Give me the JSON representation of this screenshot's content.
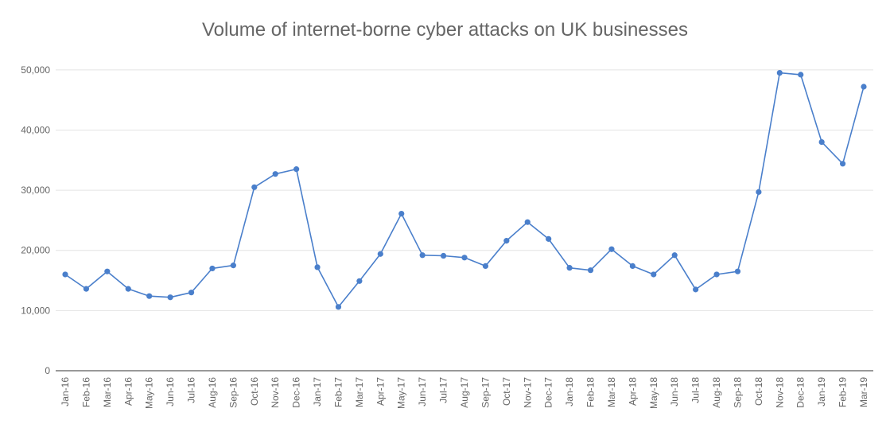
{
  "chart_data": {
    "type": "line",
    "title": "Volume of internet-borne cyber attacks on UK businesses",
    "xlabel": "",
    "ylabel": "",
    "ylim": [
      0,
      55000
    ],
    "yticks": [
      0,
      10000,
      20000,
      30000,
      40000,
      50000
    ],
    "ytick_labels": [
      "0",
      "10,000",
      "20,000",
      "30,000",
      "40,000",
      "50,000"
    ],
    "grid": true,
    "legend": "none",
    "color": "#4a7fcb",
    "categories": [
      "Jan-16",
      "Feb-16",
      "Mar-16",
      "Apr-16",
      "May-16",
      "Jun-16",
      "Jul-16",
      "Aug-16",
      "Sep-16",
      "Oct-16",
      "Nov-16",
      "Dec-16",
      "Jan-17",
      "Feb-17",
      "Mar-17",
      "Apr-17",
      "May-17",
      "Jun-17",
      "Jul-17",
      "Aug-17",
      "Sep-17",
      "Oct-17",
      "Nov-17",
      "Dec-17",
      "Jan-18",
      "Feb-18",
      "Mar-18",
      "Apr-18",
      "May-18",
      "Jun-18",
      "Jul-18",
      "Aug-18",
      "Sep-18",
      "Oct-18",
      "Nov-18",
      "Dec-18",
      "Jan-19",
      "Feb-19",
      "Mar-19"
    ],
    "series": [
      {
        "values": [
          16000,
          13600,
          16500,
          13600,
          12400,
          12200,
          13000,
          17000,
          17500,
          30500,
          32700,
          33500,
          17200,
          10600,
          14900,
          19400,
          26100,
          19200,
          19100,
          18800,
          17400,
          21600,
          24700,
          21900,
          17100,
          16700,
          20200,
          17400,
          16000,
          19200,
          13500,
          16000,
          16500,
          29700,
          49500,
          49200,
          38000,
          34400,
          47200
        ]
      }
    ]
  }
}
